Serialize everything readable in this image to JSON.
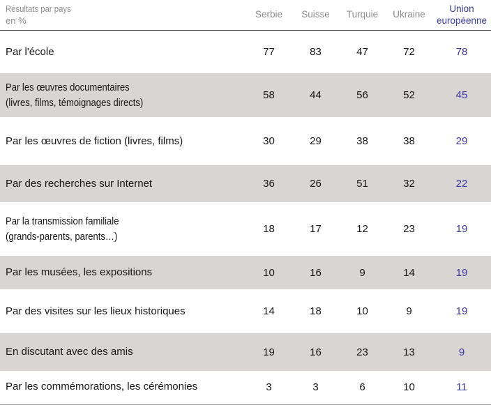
{
  "table": {
    "corner": {
      "line1": "Résultats par pays",
      "line2": "en %"
    },
    "columns": [
      "Serbie",
      "Suisse",
      "Turquie",
      "Ukraine",
      "Union européenne"
    ],
    "accent_blue": "#3939a3",
    "stripe_gray": "#d9d5d2",
    "rows": [
      {
        "label": "Par l'école",
        "sublabel": "",
        "values": [
          77,
          83,
          47,
          72,
          78
        ]
      },
      {
        "label": "Par les œuvres documentaires",
        "sublabel": "(livres, films, témoignages directs)",
        "values": [
          58,
          44,
          56,
          52,
          45
        ]
      },
      {
        "label": "Par les œuvres de fiction (livres, films)",
        "sublabel": "",
        "values": [
          30,
          29,
          38,
          38,
          29
        ]
      },
      {
        "label": "Par des recherches sur Internet",
        "sublabel": "",
        "values": [
          36,
          26,
          51,
          32,
          22
        ]
      },
      {
        "label": "Par la transmission familiale",
        "sublabel": "(grands-parents, parents…)",
        "values": [
          18,
          17,
          12,
          23,
          19
        ]
      },
      {
        "label": "Par les musées, les expositions",
        "sublabel": "",
        "values": [
          10,
          16,
          9,
          14,
          19
        ]
      },
      {
        "label": "Par des visites sur les lieux historiques",
        "sublabel": "",
        "values": [
          14,
          18,
          10,
          9,
          19
        ]
      },
      {
        "label": "En discutant avec des amis",
        "sublabel": "",
        "values": [
          19,
          16,
          23,
          13,
          9
        ]
      },
      {
        "label": "Par les commémorations, les cérémonies",
        "sublabel": "",
        "values": [
          3,
          3,
          6,
          10,
          11
        ]
      }
    ]
  },
  "chart_data": {
    "type": "table",
    "title": "Résultats par pays en %",
    "categories": [
      "Par l'école",
      "Par les œuvres documentaires (livres, films, témoignages directs)",
      "Par les œuvres de fiction (livres, films)",
      "Par des recherches sur Internet",
      "Par la transmission familiale (grands-parents, parents…)",
      "Par les musées, les expositions",
      "Par des visites sur les lieux historiques",
      "En discutant avec des amis",
      "Par les commémorations, les cérémonies"
    ],
    "series": [
      {
        "name": "Serbie",
        "values": [
          77,
          58,
          30,
          36,
          18,
          10,
          14,
          19,
          3
        ]
      },
      {
        "name": "Suisse",
        "values": [
          83,
          44,
          29,
          26,
          17,
          16,
          18,
          16,
          3
        ]
      },
      {
        "name": "Turquie",
        "values": [
          47,
          56,
          38,
          51,
          12,
          9,
          10,
          23,
          6
        ]
      },
      {
        "name": "Ukraine",
        "values": [
          72,
          52,
          38,
          32,
          23,
          14,
          9,
          13,
          10
        ]
      },
      {
        "name": "Union européenne",
        "values": [
          78,
          45,
          29,
          22,
          19,
          19,
          19,
          9,
          11
        ]
      }
    ],
    "legend_position": "top",
    "grid": false
  }
}
